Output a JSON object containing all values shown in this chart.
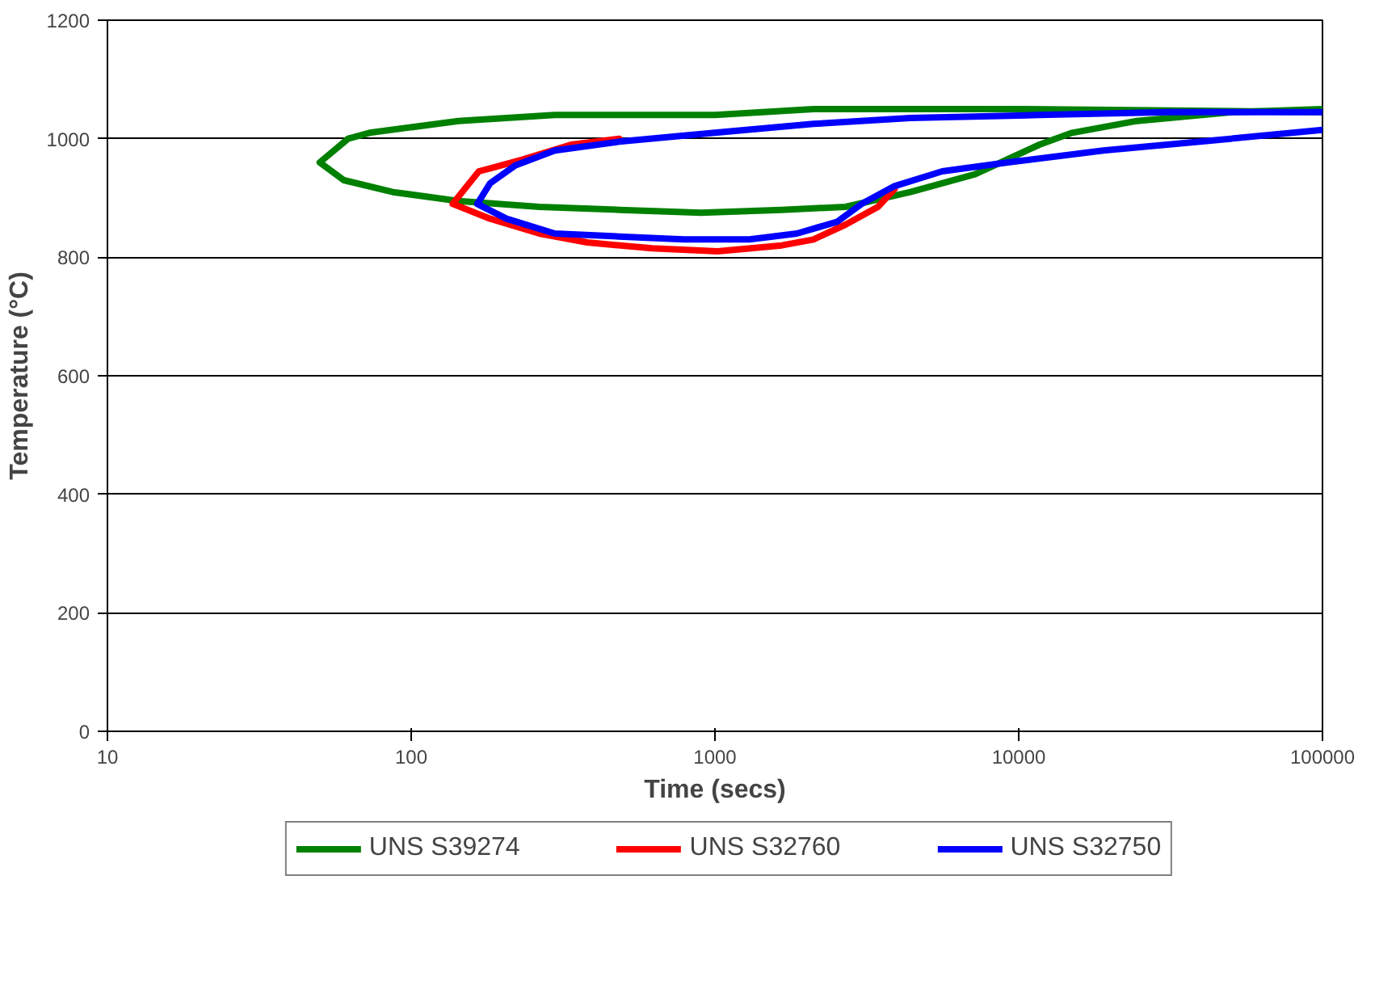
{
  "chart_data": {
    "type": "line",
    "xlabel": "Time (secs)",
    "ylabel": "Temperature (°C)",
    "log": "x",
    "xlim": [
      10,
      100000
    ],
    "xticks": [
      10,
      100,
      1000,
      10000,
      100000
    ],
    "ylim": [
      0,
      1200
    ],
    "yticks": [
      0,
      200,
      400,
      600,
      800,
      1000,
      1200
    ],
    "grid": "y",
    "legend": "bottom",
    "marker": "none",
    "line_style": "solid",
    "series": [
      {
        "name": "UNS S39274",
        "color": "#008000",
        "x": [
          100000,
          51000,
          24500,
          15000,
          11700,
          7180,
          4400,
          2690,
          1660,
          900,
          484,
          264,
          143,
          87,
          60,
          50,
          62,
          73,
          143,
          297,
          1000,
          2110,
          10000,
          100000
        ],
        "values": [
          1050,
          1045,
          1030,
          1010,
          990,
          940,
          910,
          885,
          880,
          875,
          880,
          885,
          895,
          910,
          930,
          960,
          1000,
          1010,
          1030,
          1040,
          1040,
          1050,
          1050,
          1045
        ]
      },
      {
        "name": "UNS S32760",
        "color": "#ff0000",
        "x": [
          3900,
          3440,
          2690,
          2110,
          1660,
          1020,
          620,
          380,
          264,
          182,
          137,
          167,
          182,
          233,
          336,
          484
        ],
        "values": [
          915,
          885,
          855,
          830,
          820,
          810,
          815,
          825,
          840,
          865,
          890,
          945,
          950,
          965,
          990,
          1000
        ]
      },
      {
        "name": "UNS S32750",
        "color": "#0000ff",
        "x": [
          100000,
          39500,
          19000,
          9200,
          5600,
          3900,
          3040,
          2530,
          1860,
          1300,
          790,
          484,
          297,
          206,
          165,
          182,
          220,
          297,
          484,
          1000,
          2110,
          4400,
          11700,
          31000,
          100000
        ],
        "values": [
          1015,
          995,
          980,
          960,
          945,
          920,
          890,
          860,
          840,
          830,
          830,
          835,
          840,
          865,
          890,
          925,
          955,
          980,
          995,
          1010,
          1025,
          1035,
          1040,
          1045,
          1045
        ]
      }
    ]
  }
}
